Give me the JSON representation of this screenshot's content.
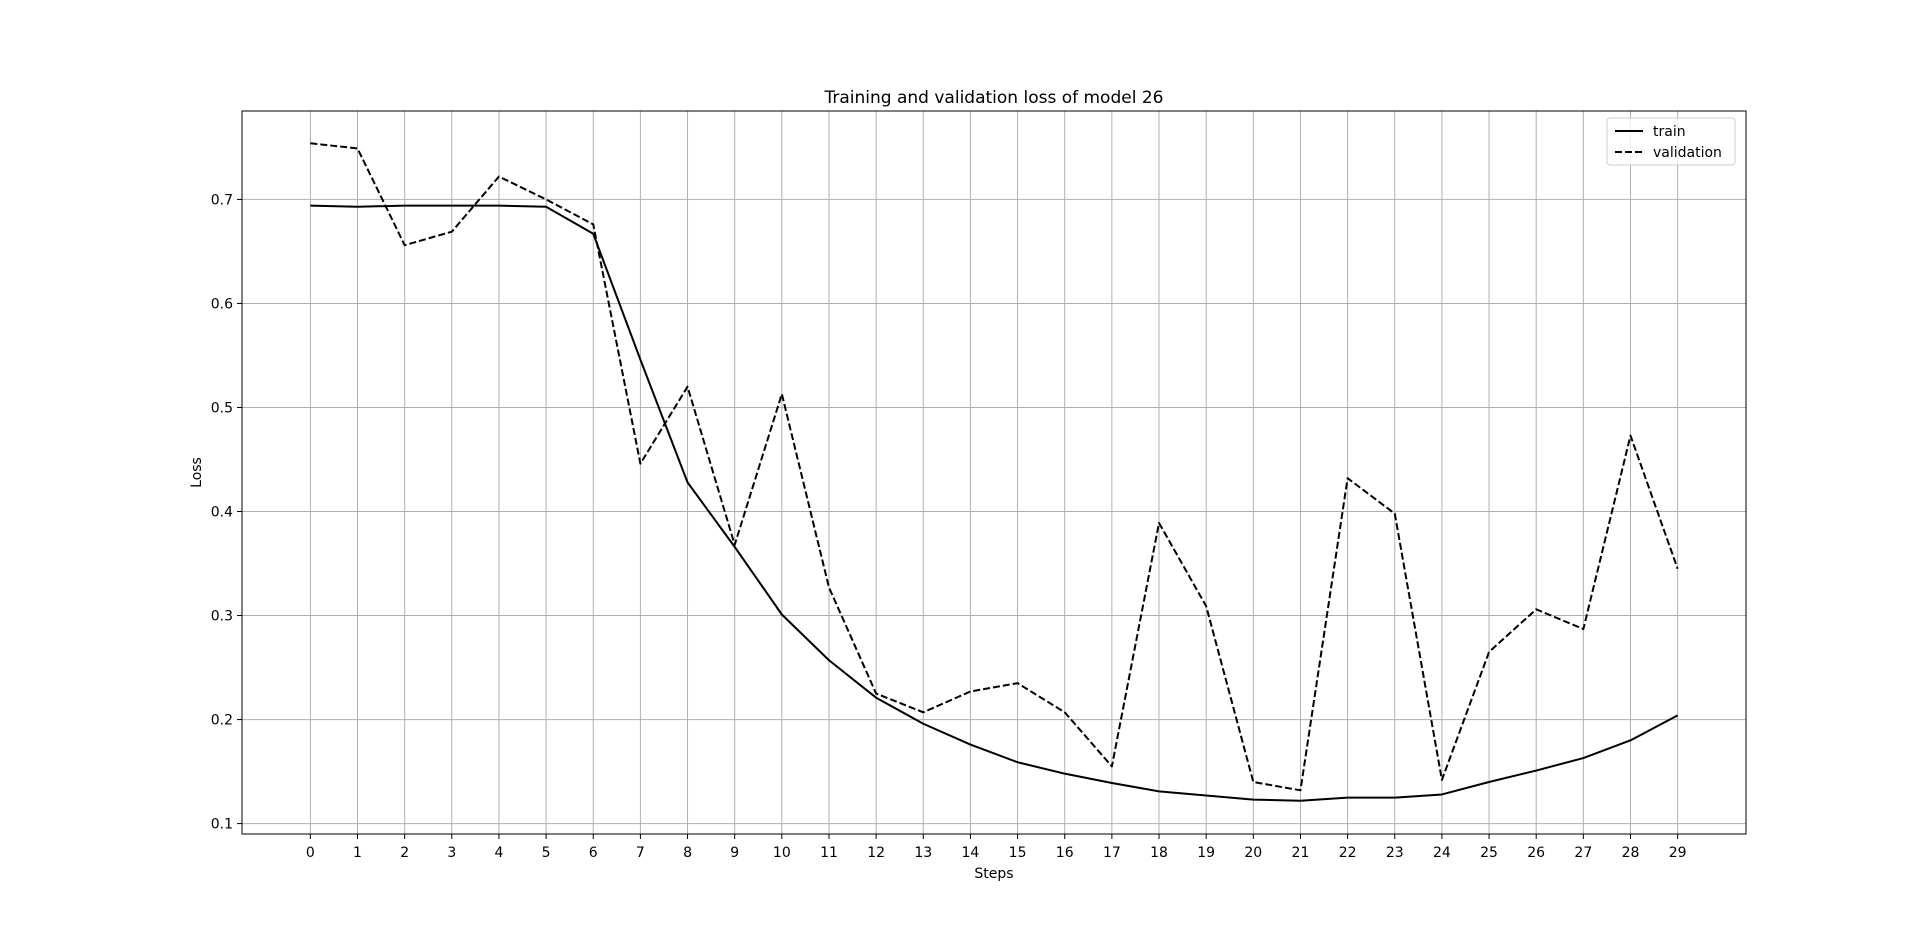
{
  "chart_data": {
    "type": "line",
    "title": "Training and validation loss of model 26",
    "xlabel": "Steps",
    "ylabel": "Loss",
    "x": [
      0,
      1,
      2,
      3,
      4,
      5,
      6,
      7,
      8,
      9,
      10,
      11,
      12,
      13,
      14,
      15,
      16,
      17,
      18,
      19,
      20,
      21,
      22,
      23,
      24,
      25,
      26,
      27,
      28,
      29
    ],
    "xticks": [
      "0",
      "1",
      "2",
      "3",
      "4",
      "5",
      "6",
      "7",
      "8",
      "9",
      "10",
      "11",
      "12",
      "13",
      "14",
      "15",
      "16",
      "17",
      "18",
      "19",
      "20",
      "21",
      "22",
      "23",
      "24",
      "25",
      "26",
      "27",
      "28",
      "29"
    ],
    "yticks": [
      0.1,
      0.2,
      0.3,
      0.4,
      0.5,
      0.6,
      0.7
    ],
    "ytick_labels": [
      "0.1",
      "0.2",
      "0.3",
      "0.4",
      "0.5",
      "0.6",
      "0.7"
    ],
    "xlim": [
      -1.45,
      30.45
    ],
    "ylim": [
      0.09,
      0.785
    ],
    "grid": true,
    "legend": "top-right",
    "series": [
      {
        "name": "train",
        "style": "solid",
        "color": "#000000",
        "values": [
          0.694,
          0.693,
          0.694,
          0.694,
          0.694,
          0.693,
          0.667,
          0.546,
          0.428,
          0.366,
          0.301,
          0.257,
          0.221,
          0.196,
          0.176,
          0.159,
          0.148,
          0.139,
          0.131,
          0.127,
          0.123,
          0.122,
          0.125,
          0.125,
          0.128,
          0.14,
          0.151,
          0.163,
          0.18,
          0.204
        ]
      },
      {
        "name": "validation",
        "style": "dashed",
        "color": "#000000",
        "values": [
          0.754,
          0.749,
          0.656,
          0.669,
          0.722,
          0.7,
          0.676,
          0.446,
          0.52,
          0.368,
          0.513,
          0.327,
          0.225,
          0.207,
          0.227,
          0.235,
          0.207,
          0.155,
          0.389,
          0.309,
          0.14,
          0.132,
          0.432,
          0.398,
          0.142,
          0.265,
          0.306,
          0.287,
          0.473,
          0.345
        ]
      }
    ]
  }
}
